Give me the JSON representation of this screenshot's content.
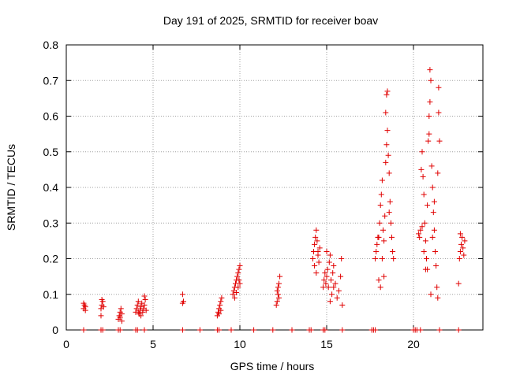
{
  "chart_data": {
    "type": "scatter",
    "title": "Day 191 of 2025, SRMTID for receiver boav",
    "xlabel": "GPS time / hours",
    "ylabel": "SRMTID / TECUs",
    "xlim": [
      0,
      24
    ],
    "ylim": [
      0,
      0.8
    ],
    "xticks": [
      0,
      5,
      10,
      15,
      20
    ],
    "xtick_labels": [
      "0",
      "5",
      "10",
      "15",
      "20"
    ],
    "yticks": [
      0,
      0.1,
      0.2,
      0.3,
      0.4,
      0.5,
      0.6,
      0.7,
      0.8
    ],
    "ytick_labels": [
      "0",
      "0.1",
      "0.2",
      "0.3",
      "0.4",
      "0.5",
      "0.6",
      "0.7",
      "0.8"
    ],
    "grid": true,
    "marker": "+",
    "color": "#e00000",
    "series": [
      {
        "name": "SRMTID",
        "points": [
          [
            1.0,
            0.06
          ],
          [
            1.05,
            0.07
          ],
          [
            1.1,
            0.065
          ],
          [
            1.0,
            0.075
          ],
          [
            1.1,
            0.055
          ],
          [
            2.0,
            0.06
          ],
          [
            2.05,
            0.07
          ],
          [
            2.1,
            0.08
          ],
          [
            2.0,
            0.04
          ],
          [
            2.15,
            0.065
          ],
          [
            2.05,
            0.085
          ],
          [
            3.0,
            0.03
          ],
          [
            3.05,
            0.04
          ],
          [
            3.1,
            0.05
          ],
          [
            3.15,
            0.06
          ],
          [
            3.2,
            0.025
          ],
          [
            3.1,
            0.035
          ],
          [
            3.2,
            0.045
          ],
          [
            4.0,
            0.05
          ],
          [
            4.05,
            0.06
          ],
          [
            4.1,
            0.07
          ],
          [
            4.15,
            0.08
          ],
          [
            4.2,
            0.045
          ],
          [
            4.25,
            0.055
          ],
          [
            4.3,
            0.065
          ],
          [
            4.35,
            0.075
          ],
          [
            4.4,
            0.05
          ],
          [
            4.45,
            0.06
          ],
          [
            4.5,
            0.07
          ],
          [
            4.55,
            0.085
          ],
          [
            4.6,
            0.055
          ],
          [
            4.5,
            0.095
          ],
          [
            4.3,
            0.04
          ],
          [
            4.15,
            0.05
          ],
          [
            6.7,
            0.075
          ],
          [
            6.75,
            0.08
          ],
          [
            6.7,
            0.1
          ],
          [
            8.7,
            0.04
          ],
          [
            8.75,
            0.05
          ],
          [
            8.8,
            0.06
          ],
          [
            8.85,
            0.07
          ],
          [
            8.9,
            0.08
          ],
          [
            8.95,
            0.09
          ],
          [
            8.8,
            0.045
          ],
          [
            8.9,
            0.055
          ],
          [
            9.6,
            0.1
          ],
          [
            9.65,
            0.11
          ],
          [
            9.7,
            0.12
          ],
          [
            9.75,
            0.13
          ],
          [
            9.8,
            0.14
          ],
          [
            9.85,
            0.15
          ],
          [
            9.9,
            0.16
          ],
          [
            9.95,
            0.17
          ],
          [
            10.0,
            0.18
          ],
          [
            9.7,
            0.09
          ],
          [
            9.9,
            0.12
          ],
          [
            10.0,
            0.13
          ],
          [
            9.8,
            0.105
          ],
          [
            9.95,
            0.14
          ],
          [
            12.1,
            0.07
          ],
          [
            12.15,
            0.08
          ],
          [
            12.2,
            0.1
          ],
          [
            12.2,
            0.12
          ],
          [
            12.25,
            0.13
          ],
          [
            12.3,
            0.15
          ],
          [
            12.15,
            0.11
          ],
          [
            12.25,
            0.09
          ],
          [
            14.2,
            0.2
          ],
          [
            14.25,
            0.22
          ],
          [
            14.3,
            0.24
          ],
          [
            14.35,
            0.26
          ],
          [
            14.4,
            0.28
          ],
          [
            14.45,
            0.25
          ],
          [
            14.5,
            0.21
          ],
          [
            14.55,
            0.19
          ],
          [
            14.6,
            0.23
          ],
          [
            14.3,
            0.18
          ],
          [
            14.4,
            0.16
          ],
          [
            14.5,
            0.22
          ],
          [
            14.8,
            0.12
          ],
          [
            14.85,
            0.14
          ],
          [
            14.9,
            0.16
          ],
          [
            14.95,
            0.13
          ],
          [
            15.0,
            0.15
          ],
          [
            15.05,
            0.17
          ],
          [
            15.1,
            0.12
          ],
          [
            15.15,
            0.19
          ],
          [
            15.2,
            0.21
          ],
          [
            15.25,
            0.14
          ],
          [
            15.3,
            0.1
          ],
          [
            15.35,
            0.16
          ],
          [
            15.4,
            0.18
          ],
          [
            15.5,
            0.13
          ],
          [
            15.6,
            0.09
          ],
          [
            15.7,
            0.11
          ],
          [
            15.8,
            0.15
          ],
          [
            15.85,
            0.2
          ],
          [
            15.9,
            0.07
          ],
          [
            15.0,
            0.22
          ],
          [
            15.2,
            0.08
          ],
          [
            15.4,
            0.12
          ],
          [
            17.8,
            0.2
          ],
          [
            17.85,
            0.22
          ],
          [
            17.9,
            0.24
          ],
          [
            17.95,
            0.26
          ],
          [
            18.0,
            0.14
          ],
          [
            18.05,
            0.3
          ],
          [
            18.1,
            0.35
          ],
          [
            18.15,
            0.38
          ],
          [
            18.2,
            0.42
          ],
          [
            18.25,
            0.28
          ],
          [
            18.3,
            0.25
          ],
          [
            18.35,
            0.32
          ],
          [
            18.4,
            0.47
          ],
          [
            18.45,
            0.52
          ],
          [
            18.5,
            0.56
          ],
          [
            18.55,
            0.49
          ],
          [
            18.6,
            0.44
          ],
          [
            18.65,
            0.36
          ],
          [
            18.7,
            0.3
          ],
          [
            18.75,
            0.26
          ],
          [
            18.8,
            0.22
          ],
          [
            18.85,
            0.2
          ],
          [
            18.4,
            0.61
          ],
          [
            18.45,
            0.66
          ],
          [
            18.5,
            0.67
          ],
          [
            18.3,
            0.15
          ],
          [
            18.1,
            0.12
          ],
          [
            18.0,
            0.26
          ],
          [
            18.2,
            0.2
          ],
          [
            18.6,
            0.33
          ],
          [
            20.3,
            0.27
          ],
          [
            20.35,
            0.26
          ],
          [
            20.4,
            0.28
          ],
          [
            20.45,
            0.45
          ],
          [
            20.5,
            0.5
          ],
          [
            20.55,
            0.43
          ],
          [
            20.6,
            0.38
          ],
          [
            20.65,
            0.3
          ],
          [
            20.7,
            0.25
          ],
          [
            20.75,
            0.2
          ],
          [
            20.8,
            0.17
          ],
          [
            20.85,
            0.53
          ],
          [
            20.9,
            0.55
          ],
          [
            20.95,
            0.64
          ],
          [
            20.9,
            0.6
          ],
          [
            20.95,
            0.73
          ],
          [
            21.0,
            0.7
          ],
          [
            21.05,
            0.46
          ],
          [
            21.1,
            0.4
          ],
          [
            21.15,
            0.33
          ],
          [
            21.2,
            0.28
          ],
          [
            21.25,
            0.22
          ],
          [
            21.3,
            0.18
          ],
          [
            21.35,
            0.12
          ],
          [
            21.4,
            0.09
          ],
          [
            21.4,
            0.44
          ],
          [
            21.45,
            0.68
          ],
          [
            21.45,
            0.61
          ],
          [
            21.5,
            0.53
          ],
          [
            20.6,
            0.22
          ],
          [
            20.7,
            0.17
          ],
          [
            20.8,
            0.35
          ],
          [
            21.0,
            0.1
          ],
          [
            21.1,
            0.26
          ],
          [
            21.2,
            0.36
          ],
          [
            20.5,
            0.29
          ],
          [
            22.6,
            0.13
          ],
          [
            22.65,
            0.2
          ],
          [
            22.7,
            0.22
          ],
          [
            22.75,
            0.24
          ],
          [
            22.8,
            0.26
          ],
          [
            22.85,
            0.23
          ],
          [
            22.9,
            0.21
          ],
          [
            22.95,
            0.25
          ],
          [
            22.7,
            0.27
          ]
        ]
      }
    ],
    "baseline": {
      "y": 0,
      "x": [
        1.0,
        1.0,
        2.0,
        2.1,
        3.0,
        3.1,
        4.0,
        4.1,
        4.5,
        6.7,
        7.7,
        8.7,
        8.8,
        9.5,
        10.8,
        11.9,
        13.0,
        14.0,
        14.1,
        14.8,
        14.9,
        15.9,
        17.6,
        17.7,
        17.8,
        20.0,
        20.1,
        20.2,
        20.4,
        21.5,
        22.6
      ]
    }
  }
}
